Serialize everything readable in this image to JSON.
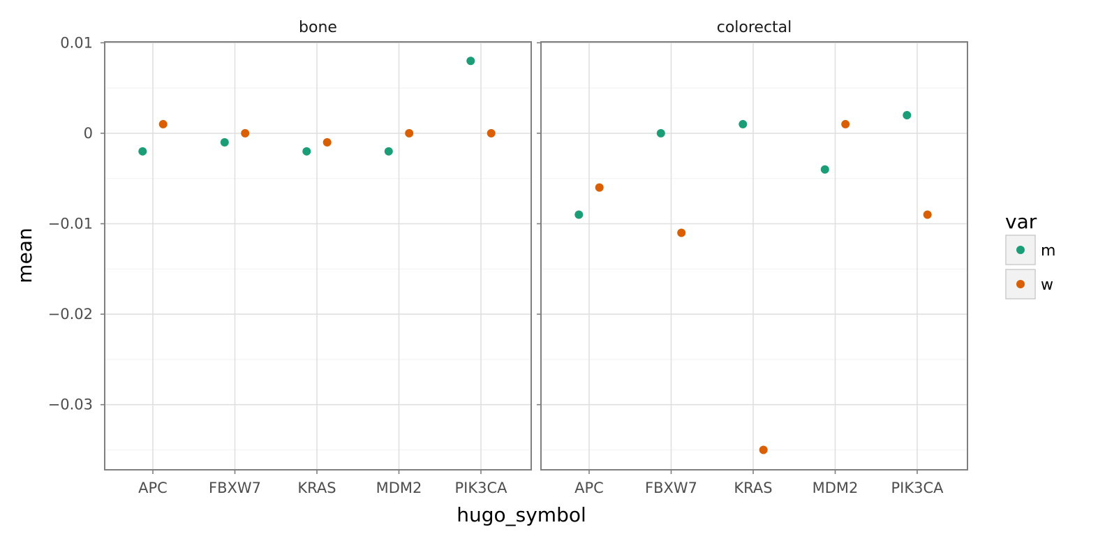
{
  "chart_data": {
    "type": "scatter",
    "facet_var": "",
    "panels": [
      {
        "name": "bone",
        "series": [
          {
            "name": "m",
            "values": [
              -0.002,
              -0.001,
              -0.002,
              -0.002,
              0.008
            ]
          },
          {
            "name": "w",
            "values": [
              0.001,
              0.0,
              -0.001,
              0.0,
              0.0
            ]
          }
        ]
      },
      {
        "name": "colorectal",
        "series": [
          {
            "name": "m",
            "values": [
              -0.009,
              0.0,
              0.001,
              -0.004,
              0.002
            ]
          },
          {
            "name": "w",
            "values": [
              -0.006,
              -0.011,
              -0.035,
              0.001,
              -0.009
            ]
          }
        ]
      }
    ],
    "categories": [
      "APC",
      "FBXW7",
      "KRAS",
      "MDM2",
      "PIK3CA"
    ],
    "xlabel": "hugo_symbol",
    "ylabel": "mean",
    "ylim": [
      -0.0372,
      0.0101
    ],
    "yticks": [
      0.01,
      0,
      -0.01,
      -0.02,
      -0.03
    ],
    "ytick_labels": [
      "0.01",
      "0",
      "−0.01",
      "−0.02",
      "−0.03"
    ],
    "grid": true,
    "dodge": true,
    "legend": {
      "title": "var",
      "placement": "right",
      "entries": [
        {
          "name": "m",
          "color": "#1b9e77"
        },
        {
          "name": "w",
          "color": "#d95f02"
        }
      ]
    }
  }
}
